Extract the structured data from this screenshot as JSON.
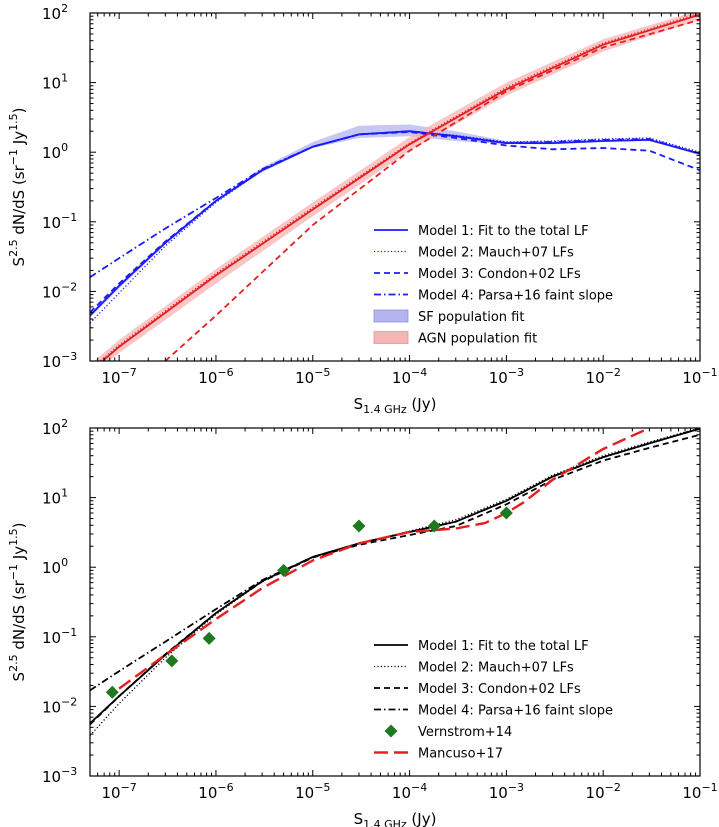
{
  "chart_data": [
    {
      "type": "line",
      "panel": "top",
      "xscale": "log",
      "yscale": "log",
      "xlim": [
        5e-08,
        0.1
      ],
      "ylim": [
        0.001,
        100
      ],
      "xlabel": "S1.4 GHz (Jy)",
      "ylabel": "S2.5 dN/dS (sr−1 Jy1.5)",
      "xticks": [
        "10-7",
        "10-6",
        "10-5",
        "10-4",
        "10-3",
        "10-2",
        "10-1"
      ],
      "yticks": [
        "10-3",
        "10-2",
        "10-1",
        "100",
        "101",
        "102"
      ],
      "legend_position": "lower-right",
      "legend": [
        "Model 1: Fit to the total LF",
        "Model 2: Mauch+07 LFs",
        "Model 3: Condon+02 LFs",
        "Model 4: Parsa+16 faint slope",
        "SF population fit",
        "AGN population fit"
      ],
      "colors": {
        "sf": "#1a1aff",
        "agn": "#e61e1e",
        "sf_band": "#b4b4f0",
        "agn_band": "#f7b4b4"
      },
      "series": [
        {
          "name": "SF Model 1",
          "style": "solid",
          "x": [
            5e-08,
            1e-07,
            3e-07,
            1e-06,
            3e-06,
            1e-05,
            3e-05,
            0.0001,
            0.0003,
            0.001,
            0.003,
            0.01,
            0.03,
            0.1
          ],
          "y": [
            0.0045,
            0.012,
            0.05,
            0.2,
            0.55,
            1.2,
            1.8,
            2.0,
            1.7,
            1.35,
            1.35,
            1.45,
            1.5,
            0.95
          ]
        },
        {
          "name": "SF Model 2",
          "style": "dotted",
          "x": [
            5e-08,
            1e-07,
            3e-07,
            1e-06,
            3e-06,
            1e-05,
            3e-05,
            0.0001,
            0.0003,
            0.001,
            0.003,
            0.01,
            0.03,
            0.1
          ],
          "y": [
            0.0035,
            0.0095,
            0.045,
            0.19,
            0.55,
            1.2,
            1.8,
            2.0,
            1.75,
            1.4,
            1.45,
            1.55,
            1.6,
            1.0
          ]
        },
        {
          "name": "SF Model 3",
          "style": "dashed",
          "x": [
            5e-08,
            1e-07,
            3e-07,
            1e-06,
            3e-06,
            1e-05,
            3e-05,
            0.0001,
            0.0003,
            0.001,
            0.003,
            0.01,
            0.03,
            0.1
          ],
          "y": [
            0.005,
            0.013,
            0.052,
            0.2,
            0.55,
            1.2,
            1.8,
            1.95,
            1.6,
            1.25,
            1.1,
            1.15,
            1.05,
            0.55
          ]
        },
        {
          "name": "SF Model 4",
          "style": "dashdot",
          "x": [
            5e-08,
            1e-07,
            3e-07,
            1e-06,
            3e-06,
            1e-05,
            3e-05,
            0.0001,
            0.0003,
            0.001,
            0.003,
            0.01,
            0.03,
            0.1
          ],
          "y": [
            0.016,
            0.03,
            0.08,
            0.22,
            0.57,
            1.2,
            1.8,
            2.0,
            1.7,
            1.35,
            1.4,
            1.5,
            1.55,
            0.95
          ]
        },
        {
          "name": "SF population fit",
          "style": "band",
          "x": [
            5e-08,
            1e-07,
            3e-07,
            1e-06,
            3e-06,
            1e-05,
            3e-05,
            0.0001,
            0.0003,
            0.001,
            0.003,
            0.01,
            0.03,
            0.1
          ],
          "y_low": [
            0.0042,
            0.011,
            0.047,
            0.19,
            0.52,
            1.15,
            1.6,
            1.7,
            1.45,
            1.3,
            1.3,
            1.4,
            1.45,
            0.9
          ],
          "y_high": [
            0.0048,
            0.013,
            0.053,
            0.21,
            0.6,
            1.4,
            2.4,
            2.5,
            2.0,
            1.45,
            1.45,
            1.5,
            1.55,
            1.0
          ]
        },
        {
          "name": "AGN Model 1",
          "style": "solid",
          "x": [
            5e-08,
            1e-07,
            1e-06,
            1e-05,
            0.0001,
            0.001,
            0.01,
            0.1
          ],
          "y": [
            0.0007,
            0.0016,
            0.017,
            0.15,
            1.3,
            8,
            35,
            95
          ]
        },
        {
          "name": "AGN Model 2",
          "style": "dotted",
          "x": [
            5e-08,
            1e-07,
            1e-06,
            1e-05,
            0.0001,
            0.001,
            0.01,
            0.1
          ],
          "y": [
            0.00075,
            0.0017,
            0.018,
            0.16,
            1.35,
            8.5,
            37,
            100
          ]
        },
        {
          "name": "AGN Model 3",
          "style": "dashed",
          "x": [
            3e-07,
            1e-06,
            1e-05,
            0.0001,
            0.001,
            0.01,
            0.1
          ],
          "y": [
            0.001,
            0.0045,
            0.09,
            1.05,
            7.5,
            32,
            80
          ]
        },
        {
          "name": "AGN population fit",
          "style": "band",
          "x": [
            5e-08,
            1e-07,
            1e-06,
            1e-05,
            0.0001,
            0.001,
            0.01,
            0.1
          ],
          "y_low": [
            0.0006,
            0.0013,
            0.013,
            0.12,
            1.05,
            6.5,
            28,
            80
          ],
          "y_high": [
            0.0009,
            0.002,
            0.021,
            0.19,
            1.65,
            10,
            42,
            110
          ]
        }
      ]
    },
    {
      "type": "line",
      "panel": "bottom",
      "xscale": "log",
      "yscale": "log",
      "xlim": [
        5e-08,
        0.1
      ],
      "ylim": [
        0.001,
        100
      ],
      "xlabel": "S1.4 GHz (Jy)",
      "ylabel": "S2.5 dN/dS (sr−1 Jy1.5)",
      "xticks": [
        "10-7",
        "10-6",
        "10-5",
        "10-4",
        "10-3",
        "10-2",
        "10-1"
      ],
      "yticks": [
        "10-3",
        "10-2",
        "10-1",
        "100",
        "101",
        "102"
      ],
      "legend_position": "lower-right",
      "legend": [
        "Model 1: Fit to the total LF",
        "Model 2: Mauch+07 LFs",
        "Model 3: Condon+02 LFs",
        "Model 4: Parsa+16 faint slope",
        "Vernstrom+14",
        "Mancuso+17"
      ],
      "colors": {
        "model": "#000000",
        "vernstrom": "#1f7a1f",
        "mancuso": "#e61e1e"
      },
      "series": [
        {
          "name": "Model 1: Fit to the total LF",
          "style": "solid",
          "x": [
            5e-08,
            1e-07,
            3e-07,
            1e-06,
            3e-06,
            1e-05,
            3e-05,
            0.0001,
            0.0003,
            0.001,
            0.003,
            0.01,
            0.03,
            0.1
          ],
          "y": [
            0.0057,
            0.014,
            0.055,
            0.22,
            0.63,
            1.4,
            2.2,
            3.2,
            4.5,
            9,
            20,
            38,
            60,
            98
          ]
        },
        {
          "name": "Model 2: Mauch+07 LFs",
          "style": "dotted",
          "x": [
            5e-08,
            1e-07,
            3e-07,
            1e-06,
            3e-06,
            1e-05,
            3e-05,
            0.0001,
            0.0003,
            0.001,
            0.003,
            0.01,
            0.03,
            0.1
          ],
          "y": [
            0.0038,
            0.011,
            0.05,
            0.21,
            0.62,
            1.4,
            2.2,
            3.3,
            4.8,
            9.5,
            21,
            40,
            63,
            100
          ]
        },
        {
          "name": "Model 3: Condon+02 LFs",
          "style": "dashed",
          "x": [
            5e-08,
            1e-07,
            3e-07,
            1e-06,
            3e-06,
            1e-05,
            3e-05,
            0.0001,
            0.0003,
            0.001,
            0.003,
            0.01,
            0.03,
            0.1
          ],
          "y": [
            0.0055,
            0.014,
            0.056,
            0.22,
            0.62,
            1.38,
            2.1,
            2.9,
            3.9,
            8,
            18,
            34,
            52,
            80
          ]
        },
        {
          "name": "Model 4: Parsa+16 faint slope",
          "style": "dashdot",
          "x": [
            5e-08,
            1e-07,
            3e-07,
            1e-06,
            3e-06,
            1e-05,
            3e-05,
            0.0001,
            0.0003,
            0.001,
            0.003,
            0.01,
            0.03,
            0.1
          ],
          "y": [
            0.017,
            0.032,
            0.085,
            0.25,
            0.65,
            1.4,
            2.2,
            3.2,
            4.5,
            9,
            20,
            38,
            60,
            98
          ]
        },
        {
          "name": "Vernstrom+14",
          "style": "markers",
          "x": [
            8.5e-08,
            3.5e-07,
            8.5e-07,
            5e-06,
            3e-05,
            0.00018,
            0.001
          ],
          "y": [
            0.016,
            0.045,
            0.095,
            0.9,
            3.9,
            3.9,
            6
          ]
        },
        {
          "name": "Mancuso+17",
          "style": "longdash",
          "x": [
            1e-07,
            3e-07,
            1e-06,
            3e-06,
            1e-05,
            3e-05,
            0.0001,
            0.0003,
            0.0006,
            0.001,
            0.0015,
            0.003,
            0.01,
            0.03
          ],
          "y": [
            0.018,
            0.055,
            0.18,
            0.5,
            1.25,
            2.2,
            3.2,
            3.6,
            4.3,
            6,
            8.5,
            18,
            50,
            100
          ]
        }
      ]
    }
  ]
}
